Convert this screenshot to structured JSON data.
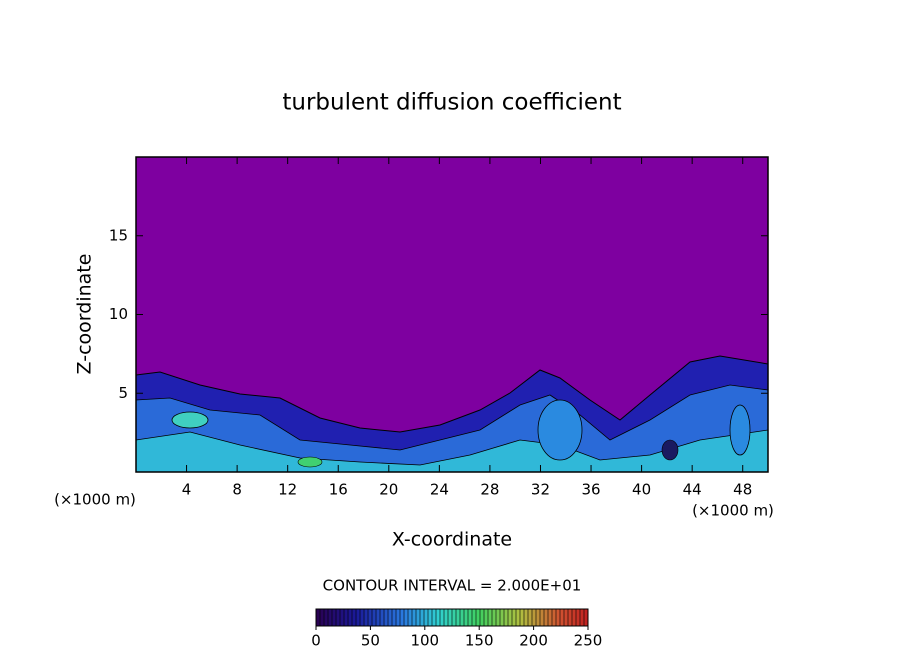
{
  "chart_data": {
    "type": "contour",
    "title": "turbulent diffusion coefficient",
    "x_label": "X-coordinate",
    "y_label": "Z-coordinate",
    "x_unit": "(×1000 m)",
    "y_unit": "(×1000 m)",
    "xlim": [
      0,
      50
    ],
    "ylim": [
      0,
      20
    ],
    "xticks": [
      4,
      8,
      12,
      16,
      20,
      24,
      28,
      32,
      36,
      40,
      44,
      48
    ],
    "yticks": [
      5,
      10,
      15
    ],
    "contour_interval": "CONTOUR INTERVAL = 2.000E+01",
    "colorbar": {
      "lim": [
        0,
        250
      ],
      "ticks": [
        0,
        50,
        100,
        150,
        200,
        250
      ]
    }
  }
}
